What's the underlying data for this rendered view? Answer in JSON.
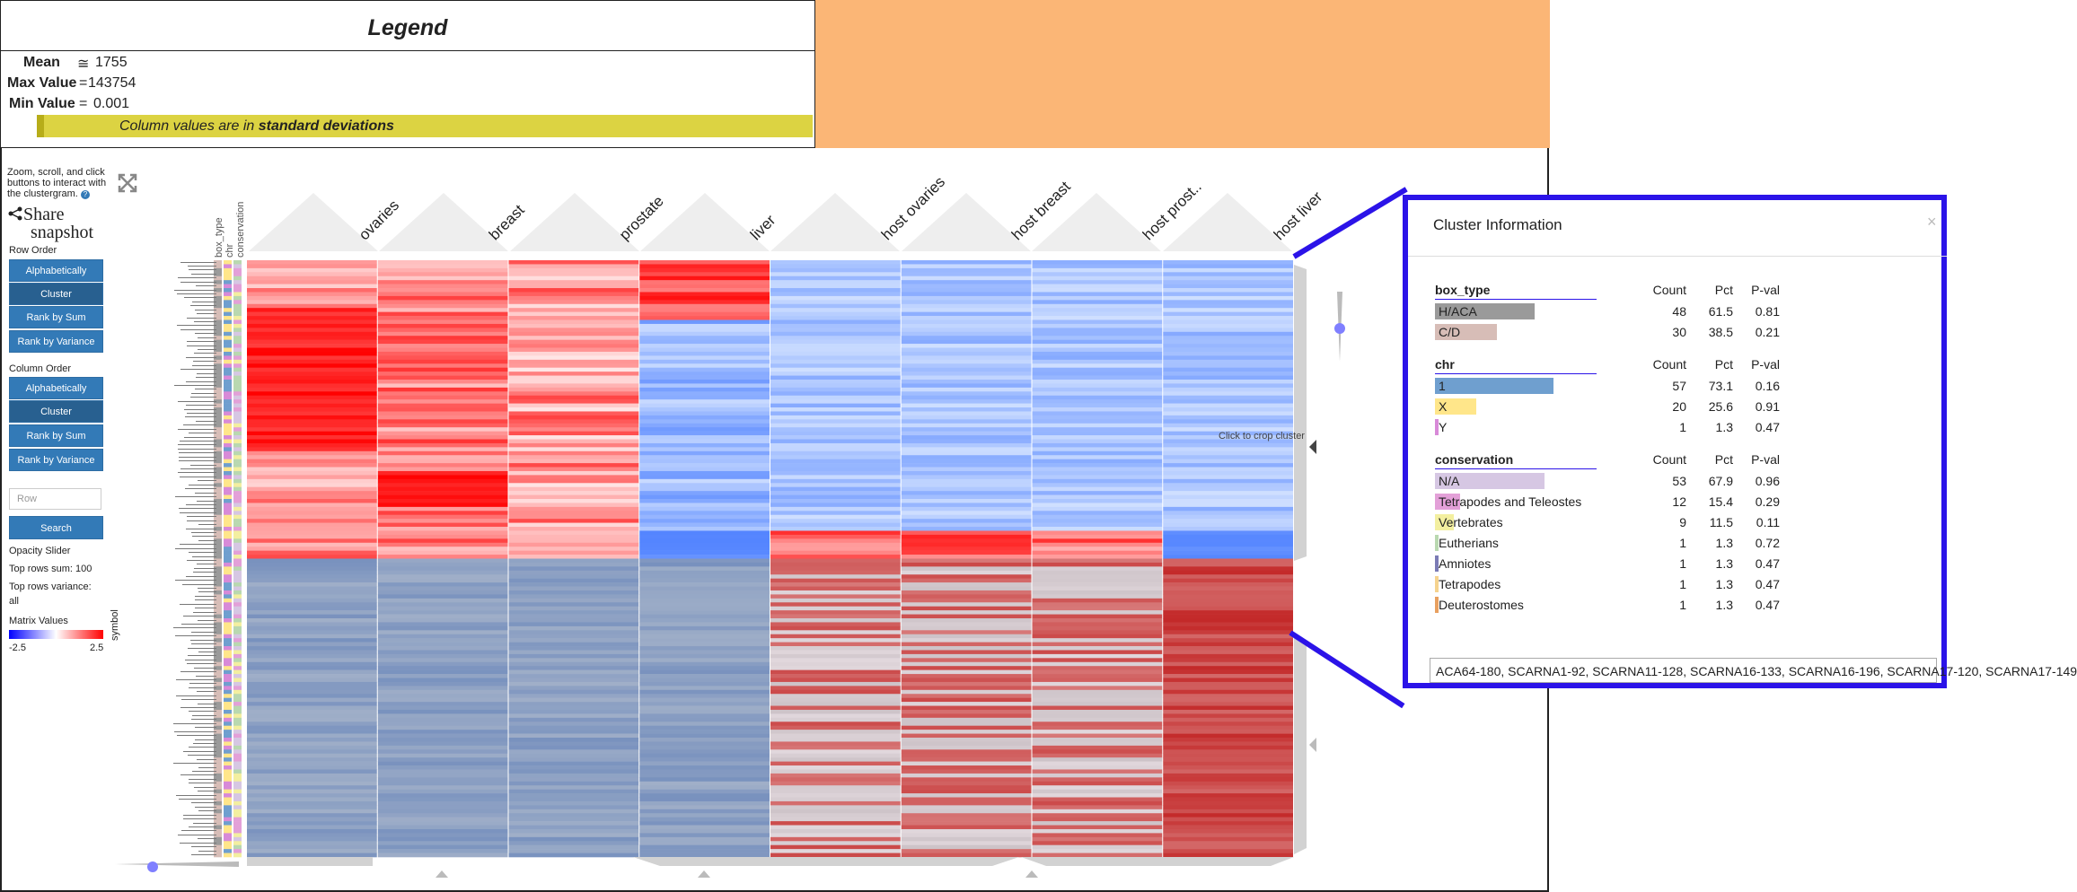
{
  "legend": {
    "title": "Legend",
    "mean_label": "Mean",
    "mean_sym": "≅",
    "mean_value": "1755",
    "max_label": "Max Value",
    "max_sym": "=",
    "max_value": "143754",
    "min_label": "Min Value",
    "min_sym": "=",
    "min_value": "0.001",
    "units_prefix": "Column values are in ",
    "units_bold": "standard deviations"
  },
  "sidebar": {
    "help": "Zoom, scroll, and click buttons to interact with the clustergram.",
    "help_icon": "question-circle-icon",
    "expand_icon": "expand-icon",
    "share_icon": "share-icon",
    "share_text": "Share",
    "snapshot_text": "snapshot",
    "row_order_label": "Row Order",
    "row_order": [
      "Alphabetically",
      "Cluster",
      "Rank by Sum",
      "Rank by Variance"
    ],
    "column_order_label": "Column Order",
    "column_order": [
      "Alphabetically",
      "Cluster",
      "Rank by Sum",
      "Rank by Variance"
    ],
    "search_placeholder": "Row",
    "search_button": "Search",
    "opacity_label": "Opacity Slider",
    "top_rows_sum": "Top rows sum: 100",
    "top_rows_variance_label": "Top rows variance:",
    "top_rows_variance_value": "all",
    "matrix_values_label": "Matrix Values",
    "matrix_min": "-2.5",
    "matrix_max": "2.5",
    "symbol_label": "symbol"
  },
  "heatmap": {
    "category_labels": [
      "box_type",
      "chr",
      "conservation"
    ],
    "columns": [
      "ovaries",
      "breast",
      "prostate",
      "liver",
      "host ovaries",
      "host breast",
      "host prost..",
      "host liver"
    ],
    "crop_hint": "Click to crop cluster",
    "colors": {
      "red": "#ff0000",
      "blue": "#1e6fd9",
      "white": "#ffffff"
    }
  },
  "cluster_info": {
    "title": "Cluster Information",
    "close_icon": "close-icon",
    "col_headers": [
      "Count",
      "Pct",
      "P-val"
    ],
    "sections": [
      {
        "name": "box_type",
        "rows": [
          {
            "label": "H/ACA",
            "count": "48",
            "pct": "61.5",
            "pval": "0.81",
            "color": "#9a9a9a",
            "frac": 0.615
          },
          {
            "label": "C/D",
            "count": "30",
            "pct": "38.5",
            "pval": "0.21",
            "color": "#d7bdb7",
            "frac": 0.385
          }
        ]
      },
      {
        "name": "chr",
        "rows": [
          {
            "label": "1",
            "count": "57",
            "pct": "73.1",
            "pval": "0.16",
            "color": "#6f9fcf",
            "frac": 0.731
          },
          {
            "label": "X",
            "count": "20",
            "pct": "25.6",
            "pval": "0.91",
            "color": "#ffe68a",
            "frac": 0.256
          },
          {
            "label": "Y",
            "count": "1",
            "pct": "1.3",
            "pval": "0.47",
            "color": "#d88ad8",
            "frac": 0.013
          }
        ]
      },
      {
        "name": "conservation",
        "rows": [
          {
            "label": "N/A",
            "count": "53",
            "pct": "67.9",
            "pval": "0.96",
            "color": "#d6c7e3",
            "frac": 0.679
          },
          {
            "label": "Tetrapodes and Teleostes",
            "count": "12",
            "pct": "15.4",
            "pval": "0.29",
            "color": "#e3a0d8",
            "frac": 0.154
          },
          {
            "label": "Vertebrates",
            "count": "9",
            "pct": "11.5",
            "pval": "0.11",
            "color": "#f3efa0",
            "frac": 0.115
          },
          {
            "label": "Eutherians",
            "count": "1",
            "pct": "1.3",
            "pval": "0.72",
            "color": "#b9d8b0",
            "frac": 0.013
          },
          {
            "label": "Amniotes",
            "count": "1",
            "pct": "1.3",
            "pval": "0.47",
            "color": "#7b7bb5",
            "frac": 0.013
          },
          {
            "label": "Tetrapodes",
            "count": "1",
            "pct": "1.3",
            "pval": "0.47",
            "color": "#f6d38e",
            "frac": 0.013
          },
          {
            "label": "Deuterostomes",
            "count": "1",
            "pct": "1.3",
            "pval": "0.47",
            "color": "#e8a060",
            "frac": 0.013
          }
        ]
      }
    ],
    "ids": "ACA64-180, SCARNA1-92, SCARNA11-128, SCARNA16-133, SCARNA16-196, SCARNA17-120, SCARNA17-149"
  }
}
